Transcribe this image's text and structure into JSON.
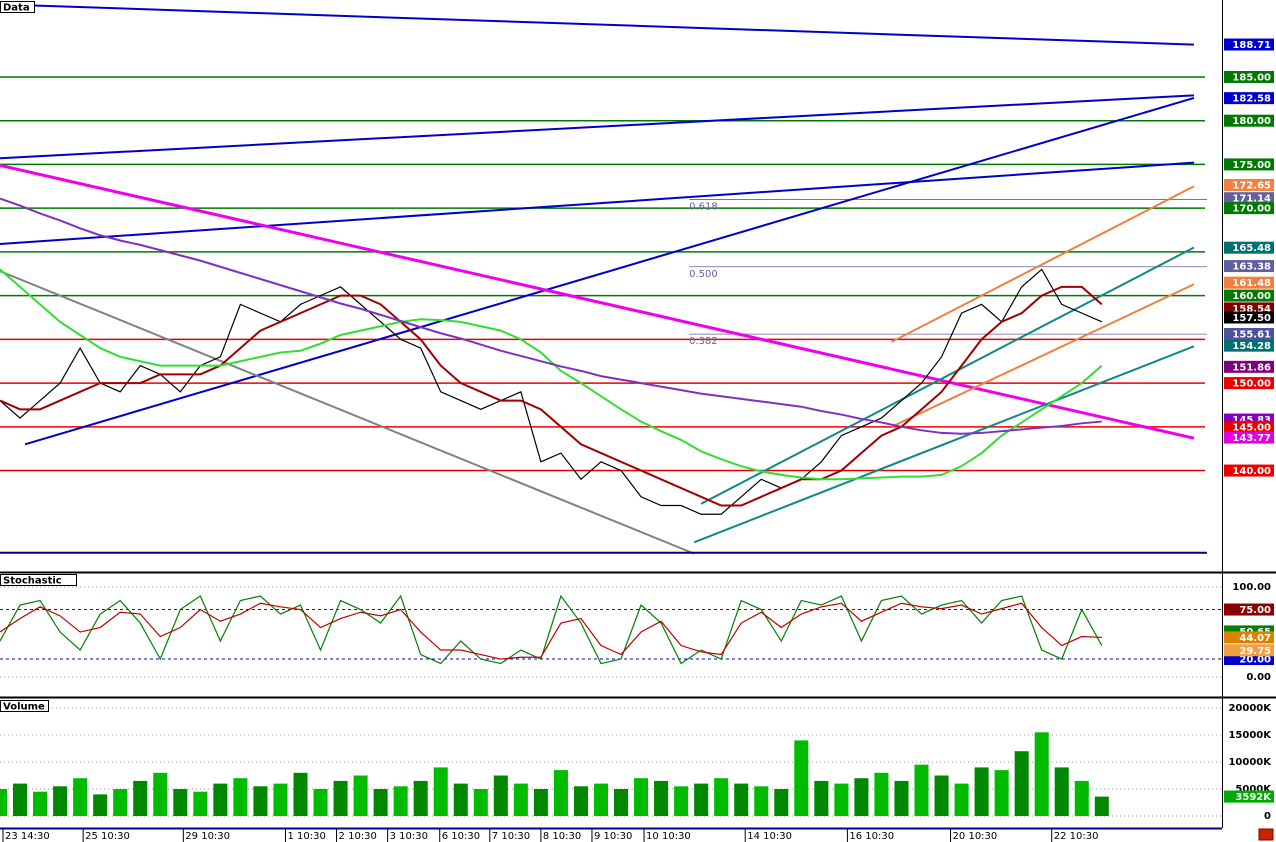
{
  "chart_data": [
    {
      "type": "price",
      "title": "Data",
      "xlim": [
        0,
        61
      ],
      "ylim": [
        128.4,
        193.8
      ],
      "xticks": [
        {
          "value": 0.15,
          "label": "23 14:30"
        },
        {
          "value": 4.15,
          "label": "25 10:30"
        },
        {
          "value": 9.15,
          "label": "29 10:30"
        },
        {
          "value": 14.25,
          "label": "1 10:30"
        },
        {
          "value": 16.8,
          "label": "2 10:30"
        },
        {
          "value": 19.35,
          "label": "3 10:30"
        },
        {
          "value": 21.95,
          "label": "6 10:30"
        },
        {
          "value": 24.45,
          "label": "7 10:30"
        },
        {
          "value": 27,
          "label": "8 10:30"
        },
        {
          "value": 29.55,
          "label": "9 10:30"
        },
        {
          "value": 32.15,
          "label": "10 10:30"
        },
        {
          "value": 37.2,
          "label": "14 10:30"
        },
        {
          "value": 42.3,
          "label": "16 10:30"
        },
        {
          "value": 47.45,
          "label": "20 10:30"
        },
        {
          "value": 52.5,
          "label": "22 10:30"
        }
      ],
      "series": [
        {
          "color": "#000000",
          "values": [
            148,
            146,
            148,
            150,
            154,
            150,
            149,
            152,
            151,
            149,
            152,
            153,
            159,
            158,
            157,
            159,
            160,
            161,
            159,
            157,
            155,
            154,
            149,
            148,
            147,
            148,
            149,
            141,
            142,
            139,
            141,
            140,
            137,
            136,
            136,
            135,
            135,
            137,
            139,
            138,
            139,
            141,
            144,
            145,
            146,
            148,
            150,
            153,
            158,
            159,
            157,
            161,
            163,
            159,
            158,
            157
          ]
        },
        {
          "color": "#a00000",
          "values": [
            148,
            147,
            147,
            148,
            149,
            150,
            150,
            150,
            151,
            151,
            151,
            152,
            154,
            156,
            157,
            158,
            159,
            160,
            160,
            159,
            157,
            155,
            152,
            150,
            149,
            148,
            148,
            147,
            145,
            143,
            142,
            141,
            140,
            139,
            138,
            137,
            136,
            136,
            137,
            138,
            139,
            139,
            140,
            142,
            144,
            145,
            147,
            149,
            152,
            155,
            157,
            158,
            160,
            161,
            161,
            159
          ]
        },
        {
          "color": "#33dd33",
          "values": [
            163,
            161,
            159,
            157,
            155.5,
            154,
            153,
            152.5,
            152,
            152,
            152,
            152,
            152.5,
            153,
            153.5,
            153.7,
            154.5,
            155.5,
            156,
            156.5,
            157,
            157.3,
            157.2,
            157,
            156.5,
            156,
            155,
            153.5,
            151.4,
            150,
            148.5,
            147,
            145.6,
            144.5,
            143.5,
            142.2,
            141.3,
            140.5,
            139.9,
            139.5,
            139.2,
            139,
            139,
            139.1,
            139.2,
            139.3,
            139.3,
            139.5,
            140.5,
            142,
            144,
            145.5,
            147,
            148.5,
            150,
            152
          ]
        },
        {
          "color": "#8030c0",
          "values": [
            171.1,
            170.3,
            169.4,
            168.6,
            167.7,
            166.9,
            166.3,
            165.8,
            165.2,
            164.6,
            164,
            163.3,
            162.6,
            161.9,
            161.2,
            160.5,
            159.8,
            159.1,
            158.5,
            157.8,
            157.1,
            156.4,
            155.7,
            155.1,
            154.4,
            153.7,
            153.1,
            152.5,
            151.9,
            151.4,
            150.8,
            150.4,
            150,
            149.6,
            149.2,
            148.8,
            148.5,
            148.2,
            147.9,
            147.6,
            147.3,
            146.8,
            146.4,
            145.9,
            145.5,
            145,
            144.6,
            144.3,
            144.2,
            144.3,
            144.5,
            144.7,
            144.9,
            145.1,
            145.4,
            145.6
          ]
        }
      ],
      "levels": [
        {
          "value": 185,
          "color": "#007a00"
        },
        {
          "value": 180,
          "color": "#007a00"
        },
        {
          "value": 175,
          "color": "#007a00"
        },
        {
          "value": 170,
          "color": "#007a00"
        },
        {
          "value": 165,
          "color": "#007a00"
        },
        {
          "value": 160,
          "color": "#007a00"
        },
        {
          "value": 155,
          "color": "#ee0000"
        },
        {
          "value": 150,
          "color": "#ee0000"
        },
        {
          "value": 145,
          "color": "#ee0000"
        },
        {
          "value": 140,
          "color": "#ee0000"
        }
      ],
      "lines": [
        {
          "color": "#0000cc",
          "x": [
            0,
            59.6
          ],
          "y": [
            193.3,
            188.7
          ]
        },
        {
          "color": "#0000cc",
          "x": [
            0,
            59.6
          ],
          "y": [
            175.7,
            182.9
          ]
        },
        {
          "color": "#0000cc",
          "x": [
            0,
            59.6
          ],
          "y": [
            165.9,
            175.2
          ]
        },
        {
          "color": "#0000cc",
          "x": [
            1.25,
            59.6
          ],
          "y": [
            143.0,
            182.6
          ]
        },
        {
          "color": "#ee00ee",
          "x": [
            0,
            59.6
          ],
          "y": [
            174.9,
            143.7
          ]
        },
        {
          "color": "#f08040",
          "x": [
            44.5,
            59.6
          ],
          "y": [
            154.7,
            172.5
          ]
        },
        {
          "color": "#f08040",
          "x": [
            44.5,
            59.6
          ],
          "y": [
            145.0,
            161.3
          ]
        },
        {
          "color": "#108888",
          "x": [
            35,
            59.6
          ],
          "y": [
            136.2,
            165.5
          ]
        },
        {
          "color": "#108888",
          "x": [
            34.65,
            59.6
          ],
          "y": [
            131.8,
            154.2
          ]
        },
        {
          "color": "#808080",
          "x": [
            0,
            34.65
          ],
          "y": [
            162.8,
            130.5
          ]
        },
        {
          "color": "#000080",
          "x": [
            0,
            60.25
          ],
          "y": [
            130.6,
            130.6
          ]
        }
      ],
      "fib_x": [
        34.4,
        60.25
      ],
      "fib": [
        {
          "value": 171.0,
          "label": "0.618"
        },
        {
          "value": 163.3,
          "label": "0.500"
        },
        {
          "value": 155.6,
          "label": "0.382"
        }
      ],
      "price_labels": [
        {
          "value": 188.71,
          "label": "188.71",
          "color": "#0000cc"
        },
        {
          "value": 185,
          "label": "185.00",
          "color": "#007a00"
        },
        {
          "value": 182.58,
          "label": "182.58",
          "color": "#0000cc"
        },
        {
          "value": 180,
          "label": "180.00",
          "color": "#007a00"
        },
        {
          "value": 175,
          "label": "175.00",
          "color": "#007a00"
        },
        {
          "value": 172.65,
          "label": "172.65",
          "color": "#f08040"
        },
        {
          "value": 171.14,
          "label": "171.14",
          "color": "#6060a0"
        },
        {
          "value": 170,
          "label": "170.00",
          "color": "#007a00"
        },
        {
          "value": 165.48,
          "label": "165.48",
          "color": "#007070"
        },
        {
          "value": 163.38,
          "label": "163.38",
          "color": "#6060a0"
        },
        {
          "value": 161.48,
          "label": "161.48",
          "color": "#f08040"
        },
        {
          "value": 160,
          "label": "160.00",
          "color": "#007a00"
        },
        {
          "value": 158.54,
          "label": "158.54",
          "color": "#800000"
        },
        {
          "value": 157.5,
          "label": "157.50",
          "color": "#000000"
        },
        {
          "value": 155.61,
          "label": "155.61",
          "color": "#5050a0"
        },
        {
          "value": 154.28,
          "label": "154.28",
          "color": "#007070"
        },
        {
          "value": 151.86,
          "label": "151.86",
          "color": "#800080"
        },
        {
          "value": 150,
          "label": "150.00",
          "color": "#ee0000"
        },
        {
          "value": 145.83,
          "label": "145.83",
          "color": "#8000c0"
        },
        {
          "value": 145,
          "label": "145.00",
          "color": "#ee0000"
        },
        {
          "value": 143.77,
          "label": "143.77",
          "color": "#e000e0"
        },
        {
          "value": 140,
          "label": "140.00",
          "color": "#ee0000"
        }
      ]
    },
    {
      "type": "line",
      "title": "Stochastic",
      "ylim": [
        -22.2,
        115.6
      ],
      "yticks": [
        {
          "value": 100,
          "label": "100.00"
        },
        {
          "value": 0,
          "label": "0.00"
        }
      ],
      "levels": [
        {
          "value": 75,
          "label": "75.00",
          "color": "#8b0000"
        },
        {
          "value": 20,
          "label": "20.00",
          "color": "#0000cc"
        }
      ],
      "series": [
        {
          "color": "#008000",
          "values": [
            40,
            80,
            85,
            50,
            30,
            70,
            85,
            60,
            20,
            75,
            90,
            40,
            85,
            90,
            70,
            80,
            30,
            85,
            75,
            60,
            90,
            25,
            15,
            40,
            20,
            15,
            30,
            20,
            90,
            60,
            15,
            20,
            80,
            60,
            15,
            30,
            20,
            85,
            75,
            40,
            85,
            80,
            90,
            40,
            85,
            90,
            70,
            80,
            85,
            60,
            85,
            90,
            30,
            20,
            75,
            35
          ]
        },
        {
          "color": "#c00000",
          "values": [
            50,
            65,
            78,
            68,
            50,
            55,
            72,
            70,
            45,
            55,
            75,
            62,
            70,
            82,
            78,
            75,
            55,
            65,
            72,
            68,
            75,
            50,
            30,
            30,
            25,
            20,
            22,
            22,
            60,
            65,
            35,
            25,
            50,
            62,
            35,
            28,
            25,
            60,
            72,
            55,
            70,
            78,
            82,
            62,
            72,
            82,
            78,
            76,
            80,
            70,
            76,
            82,
            55,
            35,
            45,
            44
          ]
        }
      ],
      "last_labels": [
        {
          "value": 50.65,
          "label": "50.65",
          "color": "#008000"
        },
        {
          "value": 44.07,
          "label": "44.07",
          "color": "#e08000"
        },
        {
          "value": 29.75,
          "label": "29.75",
          "color": "#f0a040"
        }
      ]
    },
    {
      "type": "bar",
      "title": "Volume",
      "ylim": [
        -2222,
        21667
      ],
      "yticks": [
        {
          "value": 20000,
          "label": "20000K"
        },
        {
          "value": 15000,
          "label": "15000K"
        },
        {
          "value": 10000,
          "label": "10000K"
        },
        {
          "value": 5000,
          "label": "5000K"
        },
        0
      ],
      "color": "#00bb00",
      "values": [
        5000,
        6000,
        4500,
        5500,
        7000,
        4000,
        5000,
        6500,
        8000,
        5000,
        4500,
        6000,
        7000,
        5500,
        6000,
        8000,
        5000,
        6500,
        7500,
        5000,
        5500,
        6500,
        9000,
        6000,
        5000,
        7500,
        6000,
        5000,
        8500,
        5500,
        6000,
        5000,
        7000,
        6500,
        5500,
        6000,
        7000,
        6000,
        5500,
        5000,
        14000,
        6500,
        6000,
        7000,
        8000,
        6500,
        9500,
        7500,
        6000,
        9000,
        8500,
        12000,
        15500,
        9000,
        6500,
        3592
      ],
      "last_labels": [
        {
          "value": 3592,
          "label": "3592K",
          "color": "#00aa00"
        }
      ]
    }
  ]
}
